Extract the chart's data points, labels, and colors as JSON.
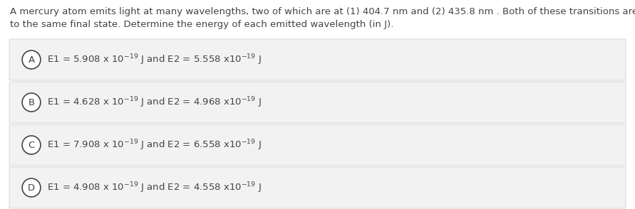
{
  "question_text_line1": "A mercury atom emits light at many wavelengths, two of which are at (1) 404.7 nm and (2) 435.8 nm . Both of these transitions are",
  "question_text_line2": "to the same final state. Determine the energy of each emitted wavelength (in J).",
  "options": [
    {
      "label": "A",
      "text": "E1 = 5.908 x 10$^{-19}$ J and E2 = 5.558 x10$^{-19}$ J"
    },
    {
      "label": "B",
      "text": "E1 = 4.628 x 10$^{-19}$ J and E2 = 4.968 x10$^{-19}$ J"
    },
    {
      "label": "C",
      "text": "E1 = 7.908 x 10$^{-19}$ J and E2 = 6.558 x10$^{-19}$ J"
    },
    {
      "label": "D",
      "text": "E1 = 4.908 x 10$^{-19}$ J and E2 = 4.558 x10$^{-19}$ J"
    }
  ],
  "bg_color": "#ffffff",
  "option_bg_color": "#f2f2f2",
  "text_color": "#444444",
  "border_color": "#cccccc",
  "font_size": 9.5,
  "question_font_size": 9.5,
  "figsize": [
    8.91,
    2.94
  ],
  "dpi": 100
}
